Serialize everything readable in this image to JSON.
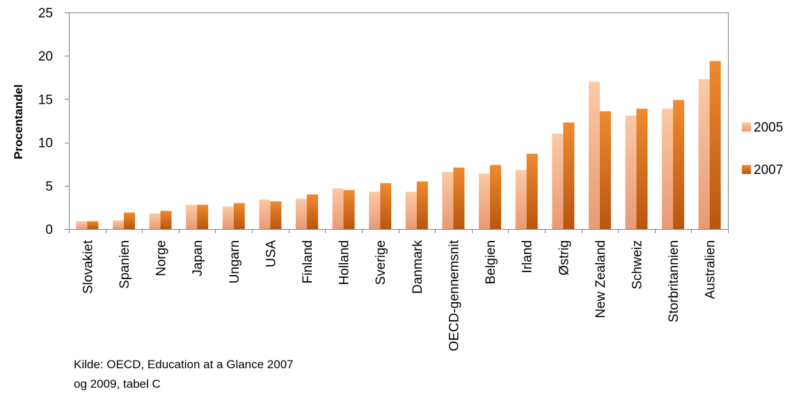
{
  "chart_data": {
    "type": "bar",
    "title": "",
    "xlabel": "",
    "ylabel": "Procentandel",
    "ylim": [
      0,
      25
    ],
    "yticks": [
      0,
      5,
      10,
      15,
      20,
      25
    ],
    "grid": false,
    "legend": "right",
    "categories": [
      "Slovakiet",
      "Spanien",
      "Norge",
      "Japan",
      "Ungarn",
      "USA",
      "Finland",
      "Holland",
      "Sverige",
      "Danmark",
      "OECD-gennemsnit",
      "Belgien",
      "Irland",
      "Østrig",
      "New Zealand",
      "Schweiz",
      "Storbritannien",
      "Australien"
    ],
    "series": [
      {
        "name": "2005",
        "color": "#f5b48e",
        "values": [
          0.9,
          1.0,
          1.8,
          2.8,
          2.6,
          3.4,
          3.5,
          4.7,
          4.3,
          4.3,
          6.6,
          6.4,
          6.8,
          11.0,
          17.0,
          13.1,
          13.9,
          17.3
        ]
      },
      {
        "name": "2007",
        "color": "#d96f1c",
        "values": [
          0.9,
          1.9,
          2.1,
          2.8,
          3.0,
          3.2,
          4.0,
          4.5,
          5.3,
          5.5,
          7.1,
          7.4,
          8.7,
          12.3,
          13.6,
          13.9,
          14.9,
          19.4
        ]
      }
    ],
    "source": {
      "line1": "Kilde: OECD, Education at a Glance 2007",
      "line2": "og 2009, tabel C"
    }
  }
}
